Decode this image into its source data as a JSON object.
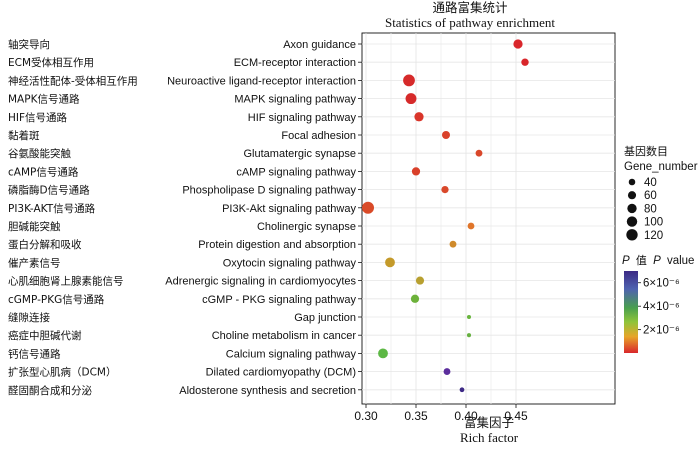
{
  "chart_data": {
    "type": "scatter",
    "title_cn": "通路富集统计",
    "title": "Statistics of pathway enrichment",
    "xlabel_cn": "富集因子",
    "xlabel": "Rich factor",
    "xlim": [
      0.295,
      0.465
    ],
    "xticks": [
      "0.30",
      "0.35",
      "0.40",
      "0.45"
    ],
    "grid": true,
    "categories": [
      {
        "cn": "轴突导向",
        "en": "Axon guidance"
      },
      {
        "cn": "ECM受体相互作用",
        "en": "ECM-receptor interaction"
      },
      {
        "cn": "神经活性配体-受体相互作用",
        "en": "Neuroactive ligand-receptor interaction"
      },
      {
        "cn": "MAPK信号通路",
        "en": "MAPK signaling pathway"
      },
      {
        "cn": "HIF信号通路",
        "en": "HIF signaling pathway"
      },
      {
        "cn": "黏着斑",
        "en": "Focal adhesion"
      },
      {
        "cn": "谷氨酸能突触",
        "en": "Glutamatergic synapse"
      },
      {
        "cn": "cAMP信号通路",
        "en": "cAMP signaling pathway"
      },
      {
        "cn": "磷脂酶D信号通路",
        "en": "Phospholipase D signaling pathway"
      },
      {
        "cn": "PI3K-AKT信号通路",
        "en": "PI3K-Akt signaling pathway"
      },
      {
        "cn": "胆碱能突触",
        "en": "Cholinergic synapse"
      },
      {
        "cn": "蛋白分解和吸收",
        "en": "Protein digestion and absorption"
      },
      {
        "cn": "催产素信号",
        "en": "Oxytocin  signaling pathway"
      },
      {
        "cn": "心肌细胞肾上腺素能信号",
        "en": "Adrenergic signaling in cardiomyocytes"
      },
      {
        "cn": "cGMP-PKG信号通路",
        "en": "cGMP - PKG  signaling pathway"
      },
      {
        "cn": "缝隙连接",
        "en": "Gap junction"
      },
      {
        "cn": "癌症中胆碱代谢",
        "en": "Choline metabolism in cancer"
      },
      {
        "cn": "钙信号通路",
        "en": "Calcium  signaling pathway"
      },
      {
        "cn": "扩张型心肌病（DCM）",
        "en": "Dilated cardiomyopathy (DCM)"
      },
      {
        "cn": "醛固酮合成和分泌",
        "en": "Aldosterone synthesis and secretion"
      }
    ],
    "points": [
      {
        "x": 0.452,
        "gene_number": 78,
        "p": 5e-08,
        "color": "#d9262b"
      },
      {
        "x": 0.459,
        "gene_number": 50,
        "p": 1e-07,
        "color": "#d9262b"
      },
      {
        "x": 0.343,
        "gene_number": 130,
        "p": 1e-08,
        "color": "#d62a2a"
      },
      {
        "x": 0.345,
        "gene_number": 110,
        "p": 1e-08,
        "color": "#d62a2a"
      },
      {
        "x": 0.353,
        "gene_number": 78,
        "p": 3e-07,
        "color": "#d9352a"
      },
      {
        "x": 0.38,
        "gene_number": 58,
        "p": 6e-07,
        "color": "#d9412a"
      },
      {
        "x": 0.413,
        "gene_number": 43,
        "p": 8e-07,
        "color": "#d9472a"
      },
      {
        "x": 0.35,
        "gene_number": 62,
        "p": 6e-07,
        "color": "#d9402a"
      },
      {
        "x": 0.379,
        "gene_number": 48,
        "p": 9e-07,
        "color": "#d9482a"
      },
      {
        "x": 0.302,
        "gene_number": 135,
        "p": 1.2e-06,
        "color": "#d94a28"
      },
      {
        "x": 0.405,
        "gene_number": 43,
        "p": 1.6e-06,
        "color": "#e0752a"
      },
      {
        "x": 0.387,
        "gene_number": 43,
        "p": 2e-06,
        "color": "#cf8a2a"
      },
      {
        "x": 0.324,
        "gene_number": 88,
        "p": 2.2e-06,
        "color": "#c49a2a"
      },
      {
        "x": 0.354,
        "gene_number": 60,
        "p": 2.8e-06,
        "color": "#b8a030"
      },
      {
        "x": 0.349,
        "gene_number": 62,
        "p": 3.5e-06,
        "color": "#6cb13a"
      },
      {
        "x": 0.403,
        "gene_number": 20,
        "p": 4e-06,
        "color": "#69b53e"
      },
      {
        "x": 0.403,
        "gene_number": 20,
        "p": 4.2e-06,
        "color": "#66b040"
      },
      {
        "x": 0.317,
        "gene_number": 88,
        "p": 4.3e-06,
        "color": "#5db845"
      },
      {
        "x": 0.381,
        "gene_number": 43,
        "p": 6e-06,
        "color": "#5b2d9c"
      },
      {
        "x": 0.396,
        "gene_number": 24,
        "p": 6.8e-06,
        "color": "#3e2a86"
      }
    ],
    "legend_size": {
      "title_cn": "基因数目",
      "title": "Gene_number",
      "labels": [
        "40",
        "60",
        "80",
        "100",
        "120"
      ],
      "values": [
        40,
        60,
        80,
        100,
        120
      ]
    },
    "legend_color": {
      "title_p": "P",
      "title_cn": "值",
      "title_value": "value",
      "labels": [
        "6×10⁻⁶",
        "4×10⁻⁶",
        "2×10⁻⁶"
      ],
      "values": [
        6e-06,
        4e-06,
        2e-06
      ],
      "range": [
        1e-08,
        7e-06
      ],
      "colors": [
        "#3b2a85",
        "#4f63b0",
        "#4aa04f",
        "#8fc43b",
        "#e7a52a",
        "#d9262b"
      ]
    }
  }
}
